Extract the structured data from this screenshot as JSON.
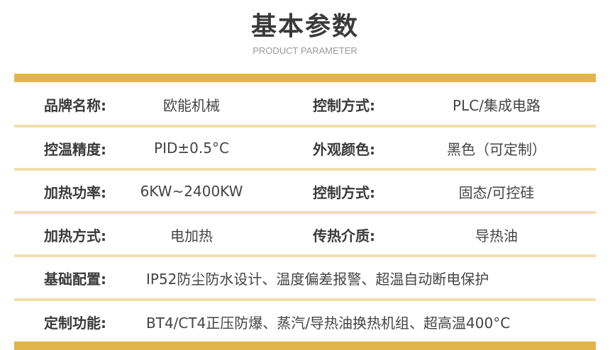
{
  "header": {
    "title": "基本参数",
    "subtitle": "PRODUCT PARAMETER"
  },
  "rows": [
    {
      "l1": "品牌名称:",
      "v1": "欧能机械",
      "l2": "控制方式:",
      "v2": "PLC/集成电路"
    },
    {
      "l1": "控温精度:",
      "v1": "PID±0.5°C",
      "l2": "外观颜色:",
      "v2": "黑色（可定制）"
    },
    {
      "l1": "加热功率:",
      "v1": "6KW~2400KW",
      "l2": "控制方式:",
      "v2": "固态/可控硅"
    },
    {
      "l1": "加热方式:",
      "v1": "电加热",
      "l2": "传热介质:",
      "v2": "导热油"
    },
    {
      "l1": "基础配置:",
      "v1": "IP52防尘防水设计、温度偏差报警、超温自动断电保护"
    },
    {
      "l1": "定制功能:",
      "v1": "BT4/CT4正压防爆、蒸汽/导热油换热机组、超高温400°C"
    }
  ],
  "colors": {
    "accent": "#e2b54c",
    "divider": "#f3dfa9"
  }
}
